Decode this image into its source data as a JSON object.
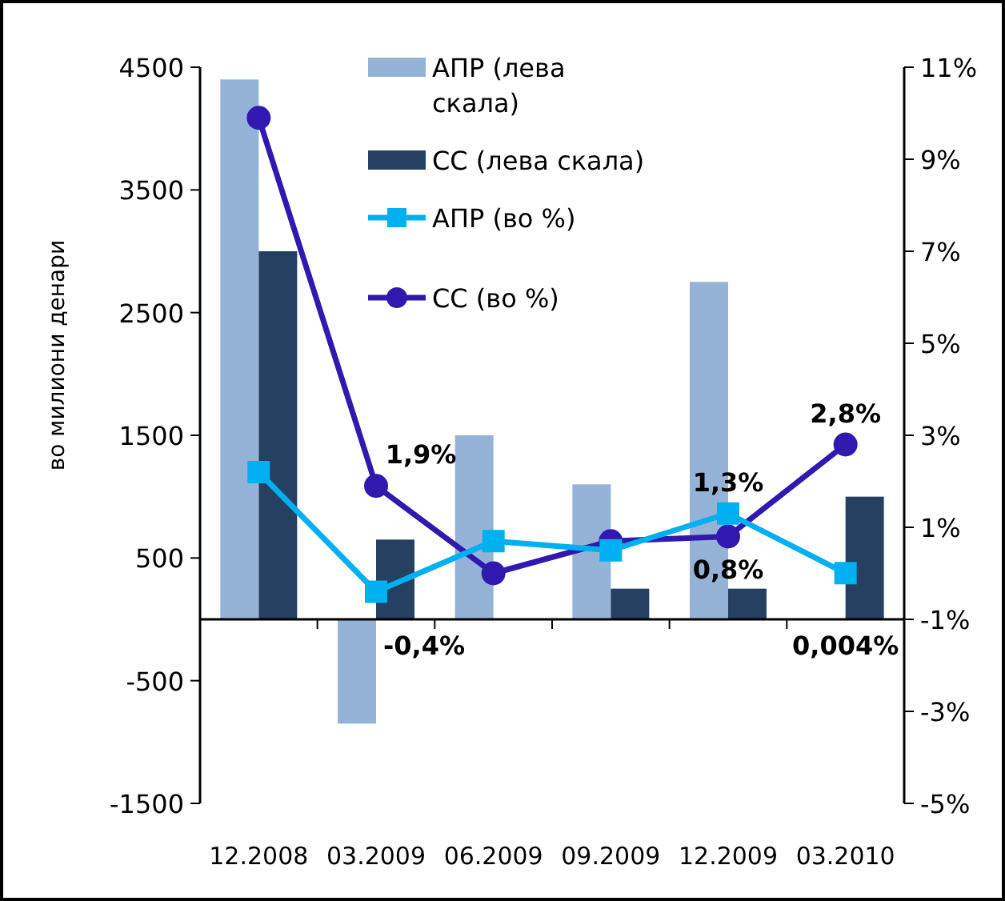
{
  "chart_data": {
    "type": "bar",
    "ylabel": "во милиони денари",
    "categories": [
      "12.2008",
      "03.2009",
      "06.2009",
      "09.2009",
      "12.2009",
      "03.2010"
    ],
    "series": [
      {
        "name": "АПР (лева скала)",
        "color": "#95b3d7",
        "values": [
          4400,
          -850,
          1500,
          1100,
          2750,
          0
        ]
      },
      {
        "name": "СС (лева скала)",
        "color": "#254061",
        "values": [
          3000,
          650,
          0,
          250,
          250,
          1000
        ]
      },
      {
        "name": "АПР (во %)",
        "type": "line",
        "axis": "y2",
        "color": "#00b0f0",
        "marker": "square",
        "values": [
          2.2,
          -0.4,
          0.7,
          0.5,
          1.3,
          0.004
        ],
        "value_labels": [
          null,
          "-0,4%",
          null,
          null,
          "1,3%",
          "0,004%"
        ]
      },
      {
        "name": "СС (во %)",
        "type": "line",
        "axis": "y2",
        "color": "#3119b0",
        "marker": "circle",
        "values": [
          9.9,
          1.9,
          0.0,
          0.7,
          0.8,
          2.8
        ],
        "value_labels": [
          null,
          "1,9%",
          null,
          null,
          "0,8%",
          "2,8%"
        ]
      }
    ],
    "ylim": [
      -1500,
      4500
    ],
    "yticks": [
      -1500,
      -500,
      500,
      1500,
      2500,
      3500,
      4500
    ],
    "y2lim": [
      -5,
      11
    ],
    "y2ticks": [
      {
        "value": -5,
        "label": "-5%"
      },
      {
        "value": -3,
        "label": "-3%"
      },
      {
        "value": -1,
        "label": "-1%"
      },
      {
        "value": 1,
        "label": "1%"
      },
      {
        "value": 3,
        "label": "3%"
      },
      {
        "value": 5,
        "label": "5%"
      },
      {
        "value": 7,
        "label": "7%"
      },
      {
        "value": 9,
        "label": "9%"
      },
      {
        "value": 11,
        "label": "11%"
      }
    ],
    "legend": "top",
    "line_style": "solid"
  }
}
